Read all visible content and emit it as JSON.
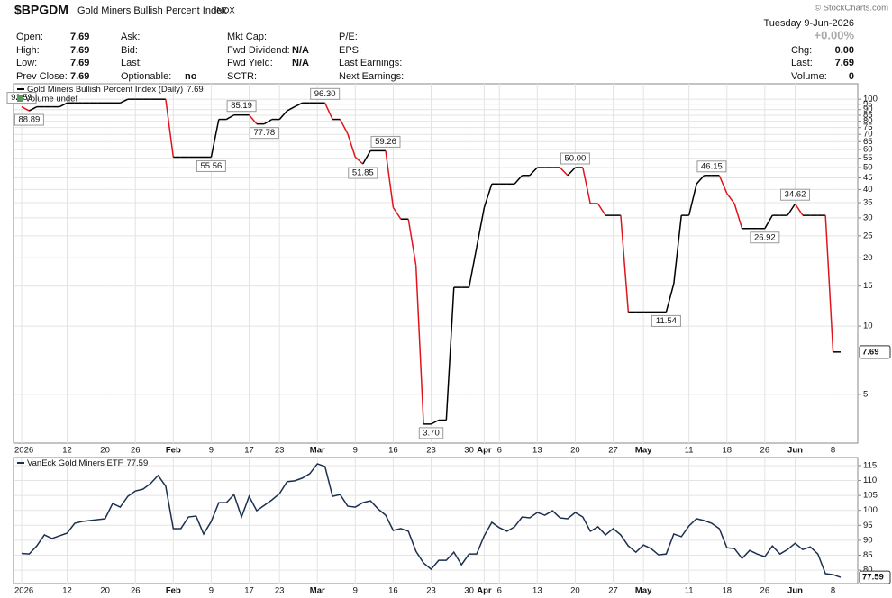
{
  "header": {
    "symbol": "$BPGDM",
    "name": "Gold Miners Bullish Percent Index",
    "exchange": "INDX",
    "watermark": "© StockCharts.com",
    "date": "Tuesday  9-Jun-2026",
    "change_percent": "+0.00%"
  },
  "quote": {
    "columns": [
      [
        {
          "label": "Open:",
          "value": "7.69"
        },
        {
          "label": "High:",
          "value": "7.69"
        },
        {
          "label": "Low:",
          "value": "7.69"
        },
        {
          "label": "Prev Close:",
          "value": "7.69"
        }
      ],
      [
        {
          "label": "Ask:"
        },
        {
          "label": "Bid:"
        },
        {
          "label": "Last:"
        },
        {
          "label": "Optionable:",
          "value": "no"
        }
      ],
      [
        {
          "label": "Mkt Cap:"
        },
        {
          "label": "Fwd Dividend:",
          "value": "N/A"
        },
        {
          "label": "Fwd Yield:",
          "value": "N/A"
        },
        {
          "label": "SCTR:"
        }
      ],
      [
        {
          "label": "P/E:"
        },
        {
          "label": "EPS:"
        },
        {
          "label": "Last Earnings:"
        },
        {
          "label": "Next Earnings:"
        }
      ],
      [
        {
          "label": "Chg:",
          "value": "0.00"
        },
        {
          "label": "Last:",
          "value": "7.69"
        },
        {
          "label": "Volume:",
          "value": "0"
        }
      ]
    ]
  },
  "chart_data": [
    {
      "type": "line",
      "log_scale": true,
      "grid": true,
      "volume_label": "Volume undef",
      "categories": [
        "2026",
        null,
        null,
        null,
        null,
        null,
        "12",
        null,
        null,
        null,
        null,
        "20",
        null,
        null,
        null,
        "26",
        null,
        null,
        null,
        null,
        "Feb",
        null,
        null,
        null,
        null,
        "9",
        null,
        null,
        null,
        null,
        "17",
        null,
        null,
        null,
        "23",
        null,
        null,
        null,
        null,
        "Mar",
        null,
        null,
        null,
        null,
        "9",
        null,
        null,
        null,
        null,
        "16",
        null,
        null,
        null,
        null,
        "23",
        null,
        null,
        null,
        null,
        "30",
        null,
        "Apr",
        null,
        "6",
        null,
        null,
        null,
        null,
        "13",
        null,
        null,
        null,
        null,
        "20",
        null,
        null,
        null,
        null,
        "27",
        null,
        null,
        null,
        "May",
        null,
        null,
        null,
        null,
        null,
        "11",
        null,
        null,
        null,
        null,
        "18",
        null,
        null,
        null,
        null,
        "26",
        null,
        null,
        null,
        "Jun",
        null,
        null,
        null,
        null,
        "8",
        null
      ],
      "series": [
        {
          "name": "Gold Miners Bullish Percent Index (Daily)",
          "color": "#000000",
          "down_color": "#e0151b",
          "values": [
            92.59,
            88.89,
            92.59,
            92.59,
            92.59,
            92.59,
            96.3,
            96.3,
            96.3,
            96.3,
            96.3,
            96.3,
            96.3,
            96.3,
            100,
            100,
            100,
            100,
            100,
            100,
            55.56,
            55.56,
            55.56,
            55.56,
            55.56,
            55.56,
            81.48,
            81.48,
            85.19,
            85.19,
            85.19,
            77.78,
            77.78,
            81.48,
            81.48,
            88.89,
            92.59,
            96.3,
            96.3,
            96.3,
            96.3,
            81.48,
            81.48,
            70.37,
            55.56,
            51.85,
            59.26,
            59.26,
            59.26,
            33.33,
            29.63,
            29.63,
            18.52,
            3.7,
            3.7,
            3.85,
            3.85,
            14.81,
            14.81,
            14.81,
            22.22,
            33.33,
            42.31,
            42.31,
            42.31,
            42.31,
            46.15,
            46.15,
            50,
            50,
            50,
            50,
            46.15,
            50,
            50,
            34.62,
            34.62,
            30.77,
            30.77,
            30.77,
            11.54,
            11.54,
            11.54,
            11.54,
            11.54,
            11.54,
            15.38,
            30.77,
            30.77,
            42.31,
            46.15,
            46.15,
            46.15,
            38.46,
            34.62,
            26.92,
            26.92,
            26.92,
            26.92,
            30.77,
            30.77,
            30.77,
            34.62,
            30.77,
            30.77,
            30.77,
            30.77,
            7.69,
            7.69
          ],
          "value_labels": [
            "92.59",
            "88.89",
            null,
            null,
            null,
            null,
            null,
            null,
            null,
            null,
            null,
            null,
            null,
            null,
            null,
            null,
            null,
            null,
            null,
            null,
            null,
            null,
            null,
            null,
            null,
            "55.56",
            null,
            null,
            null,
            "85.19",
            null,
            null,
            "77.78",
            null,
            null,
            null,
            null,
            null,
            null,
            null,
            "96.30",
            null,
            null,
            null,
            null,
            "51.85",
            null,
            null,
            "59.26",
            null,
            null,
            null,
            null,
            null,
            "3.70",
            null,
            null,
            null,
            null,
            null,
            null,
            null,
            null,
            null,
            null,
            null,
            null,
            null,
            null,
            null,
            null,
            null,
            null,
            "50.00",
            null,
            null,
            null,
            null,
            null,
            null,
            null,
            null,
            null,
            null,
            null,
            "11.54",
            null,
            null,
            null,
            null,
            null,
            "46.15",
            null,
            null,
            null,
            null,
            null,
            null,
            "26.92",
            null,
            null,
            null,
            "34.62",
            null,
            null,
            null,
            null,
            null,
            "7.69"
          ]
        }
      ],
      "ylim": [
        3.05,
        117
      ],
      "yticks": [
        5,
        10,
        15,
        20,
        25,
        30,
        35,
        40,
        45,
        50,
        55,
        60,
        65,
        70,
        75,
        80,
        85,
        90,
        95,
        100
      ]
    },
    {
      "type": "line",
      "grid": true,
      "categories": [
        "2026",
        null,
        null,
        null,
        null,
        null,
        "12",
        null,
        null,
        null,
        null,
        "20",
        null,
        null,
        null,
        "26",
        null,
        null,
        null,
        null,
        "Feb",
        null,
        null,
        null,
        null,
        "9",
        null,
        null,
        null,
        null,
        "17",
        null,
        null,
        null,
        "23",
        null,
        null,
        null,
        null,
        "Mar",
        null,
        null,
        null,
        null,
        "9",
        null,
        null,
        null,
        null,
        "16",
        null,
        null,
        null,
        null,
        "23",
        null,
        null,
        null,
        null,
        "30",
        null,
        "Apr",
        null,
        "6",
        null,
        null,
        null,
        null,
        "13",
        null,
        null,
        null,
        null,
        "20",
        null,
        null,
        null,
        null,
        "27",
        null,
        null,
        null,
        "May",
        null,
        null,
        null,
        null,
        null,
        "11",
        null,
        null,
        null,
        null,
        "18",
        null,
        null,
        null,
        null,
        "26",
        null,
        null,
        null,
        "Jun",
        null,
        null,
        null,
        null,
        "8",
        null
      ],
      "series": [
        {
          "name": "VanEck Gold Miners ETF",
          "color": "#1c2f4f",
          "values": [
            85.6,
            85.4,
            88.1,
            91.8,
            90.6,
            91.5,
            92.4,
            95.7,
            96.3,
            96.6,
            96.9,
            97.2,
            102.3,
            101.1,
            104.7,
            106.5,
            107.1,
            109,
            111.7,
            108.1,
            93.9,
            93.9,
            97.8,
            98.1,
            92.1,
            96.3,
            102.6,
            102.6,
            105.3,
            97.8,
            104.7,
            99.9,
            101.7,
            103.5,
            105.6,
            109.6,
            109.9,
            110.8,
            112.3,
            115.6,
            114.7,
            104.7,
            105.3,
            101.4,
            101.1,
            102.6,
            103.2,
            100.5,
            98.4,
            93.3,
            93.9,
            93,
            86.3,
            82.4,
            80.3,
            83.3,
            83.3,
            86,
            81.8,
            85.4,
            85.4,
            91.5,
            96,
            94.2,
            93,
            94.5,
            97.8,
            97.5,
            99.3,
            98.4,
            99.9,
            97.5,
            97.2,
            99.3,
            97.8,
            93,
            94.5,
            91.8,
            93.9,
            91.8,
            88.1,
            86,
            88.4,
            87.2,
            85.1,
            85.4,
            92.1,
            91.2,
            94.8,
            97.2,
            96.6,
            95.7,
            93.9,
            87.5,
            87.2,
            83.9,
            86.6,
            85.4,
            84.5,
            88.1,
            85.4,
            86.9,
            89,
            86.9,
            87.8,
            85.4,
            78.8,
            78.5,
            77.59
          ]
        }
      ],
      "ylim": [
        75.5,
        117.7
      ],
      "yticks": [
        80,
        85,
        90,
        95,
        100,
        105,
        110,
        115
      ]
    }
  ]
}
